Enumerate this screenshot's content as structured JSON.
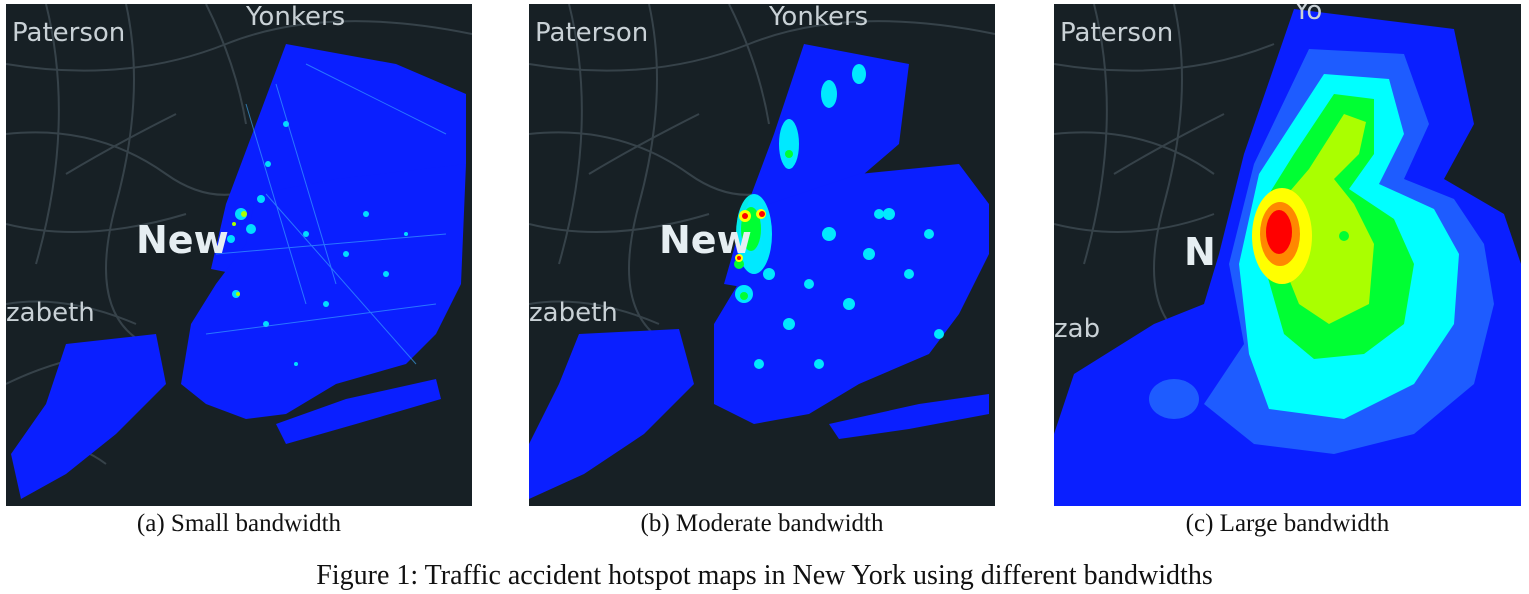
{
  "figure_caption": "Figure 1: Traffic accident hotspot maps in New York using different bandwidths",
  "panels": [
    {
      "caption": "(a) Small bandwidth",
      "labels": {
        "paterson": "Paterson",
        "yonkers": "Yonkers",
        "newyork": "New",
        "elizabeth": "zabeth"
      }
    },
    {
      "caption": "(b) Moderate bandwidth",
      "labels": {
        "paterson": "Paterson",
        "yonkers": "Yonkers",
        "newyork": "New",
        "elizabeth": "zabeth"
      }
    },
    {
      "caption": "(c) Large bandwidth",
      "labels": {
        "paterson": "Paterson",
        "yonkers": "Yo",
        "newyork": "N",
        "elizabeth": "zab"
      }
    }
  ],
  "colors": {
    "map_background": "#172025",
    "roads": "#3a464e",
    "water": "#1e2a31",
    "density_low": "#0a1fff",
    "density_mid_low": "#00ffff",
    "density_mid": "#00ff33",
    "density_mid_high": "#ffff00",
    "density_high": "#ff0000"
  }
}
